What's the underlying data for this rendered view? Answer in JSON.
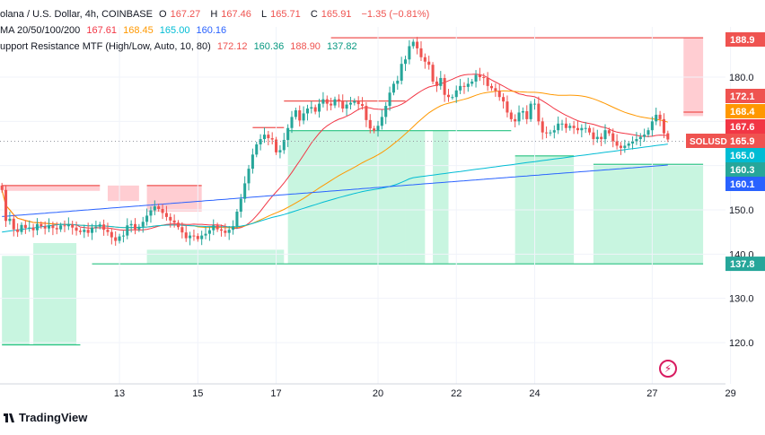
{
  "legend": {
    "symbol": "olana / U.S. Dollar, 4h, COINBASE",
    "o_label": "O",
    "o": "167.27",
    "h_label": "H",
    "h": "167.46",
    "l_label": "L",
    "l": "165.71",
    "c_label": "C",
    "c": "165.91",
    "change": "−1.35 (−0.81%)",
    "ma_label": "MA 20/50/100/200",
    "ma20": "167.61",
    "ma50": "168.45",
    "ma100": "165.00",
    "ma200": "160.16",
    "sr_label": "upport Resistance MTF (High/Low, Auto, 10, 80)",
    "sr1": "172.12",
    "sr2": "160.36",
    "sr3": "188.90",
    "sr4": "137.82"
  },
  "branding": {
    "name": "TradingView"
  },
  "colors": {
    "up": "#26a69a",
    "down": "#ef5350",
    "ma20": "#f23645",
    "ma50": "#ff9800",
    "ma100": "#00bcd4",
    "ma200": "#2962ff",
    "res_zone": "#ffcdd2",
    "sup_zone": "#c8f5e0",
    "res_line": "#ef5350",
    "sup_line": "#26c281"
  },
  "chart_data": {
    "type": "candlestick",
    "price_axis_labels": [
      "180.0",
      "150.0",
      "140.0",
      "130.0",
      "120.0"
    ],
    "ylim": [
      111,
      190
    ],
    "x_tick_labels": [
      "13",
      "15",
      "17",
      "20",
      "22",
      "24",
      "27",
      "29"
    ],
    "x_tick_index": [
      30,
      50,
      70,
      96,
      116,
      136,
      166,
      186
    ],
    "price_tags": [
      {
        "label": "188.9",
        "value": 188.9,
        "color": "#ef5350"
      },
      {
        "label": "172.1",
        "value": 172.12,
        "color": "#ef5350"
      },
      {
        "label": "168.4",
        "value": 168.45,
        "color": "#ff9800"
      },
      {
        "label": "167.6",
        "value": 167.61,
        "color": "#f23645"
      },
      {
        "label": "165.9",
        "value": 165.91,
        "color": "#ef5350"
      },
      {
        "label": "165.0",
        "value": 165.0,
        "color": "#00bcd4"
      },
      {
        "label": "160.3",
        "value": 160.36,
        "color": "#26a69a"
      },
      {
        "label": "160.1",
        "value": 160.16,
        "color": "#2962ff"
      },
      {
        "label": "137.8",
        "value": 137.82,
        "color": "#26a69a"
      }
    ],
    "symbol_tag": "SOLUSD",
    "closes": [
      154.5,
      147.5,
      148.0,
      145.6,
      145.0,
      146.6,
      145.9,
      146.0,
      145.4,
      146.8,
      146.3,
      145.8,
      146.5,
      145.9,
      145.6,
      146.5,
      146.3,
      146.7,
      146.0,
      145.3,
      145.0,
      145.5,
      144.8,
      146.0,
      146.2,
      146.7,
      145.5,
      145.0,
      143.8,
      143.0,
      144.0,
      144.2,
      146.5,
      146.8,
      145.6,
      146.2,
      147.3,
      148.7,
      149.9,
      150.8,
      150.2,
      149.3,
      148.4,
      147.6,
      147.1,
      146.1,
      144.9,
      143.6,
      144.2,
      144.1,
      143.4,
      144.2,
      144.6,
      145.4,
      146.5,
      145.6,
      145.3,
      144.8,
      145.5,
      146.3,
      149.6,
      152.5,
      156.0,
      159.3,
      162.5,
      164.8,
      166.0,
      167.0,
      166.2,
      165.9,
      163.0,
      163.5,
      165.8,
      168.5,
      171.0,
      172.5,
      170.2,
      171.8,
      172.9,
      173.2,
      172.2,
      174.0,
      175.0,
      174.0,
      173.6,
      175.0,
      174.5,
      172.9,
      173.8,
      174.2,
      174.6,
      173.9,
      173.5,
      170.3,
      168.4,
      167.9,
      169.0,
      171.0,
      173.5,
      176.5,
      178.5,
      179.2,
      183.0,
      184.0,
      187.0,
      188.0,
      186.5,
      184.5,
      183.5,
      182.8,
      179.0,
      178.0,
      179.8,
      176.0,
      175.5,
      175.5,
      177.0,
      178.0,
      177.8,
      178.5,
      179.0,
      180.5,
      180.0,
      179.8,
      178.0,
      177.5,
      176.9,
      175.5,
      174.5,
      172.0,
      170.5,
      170.0,
      172.0,
      172.3,
      170.5,
      174.0,
      174.0,
      170.0,
      167.5,
      167.3,
      167.5,
      168.0,
      169.5,
      169.5,
      168.5,
      169.0,
      168.5,
      168.0,
      168.5,
      168.5,
      167.5,
      166.0,
      166.5,
      166.0,
      168.0,
      167.3,
      165.5,
      164.5,
      164.0,
      164.5,
      165.0,
      165.5,
      166.0,
      166.5,
      167.0,
      168.0,
      170.0,
      171.5,
      170.5,
      167.3,
      165.91
    ]
  }
}
